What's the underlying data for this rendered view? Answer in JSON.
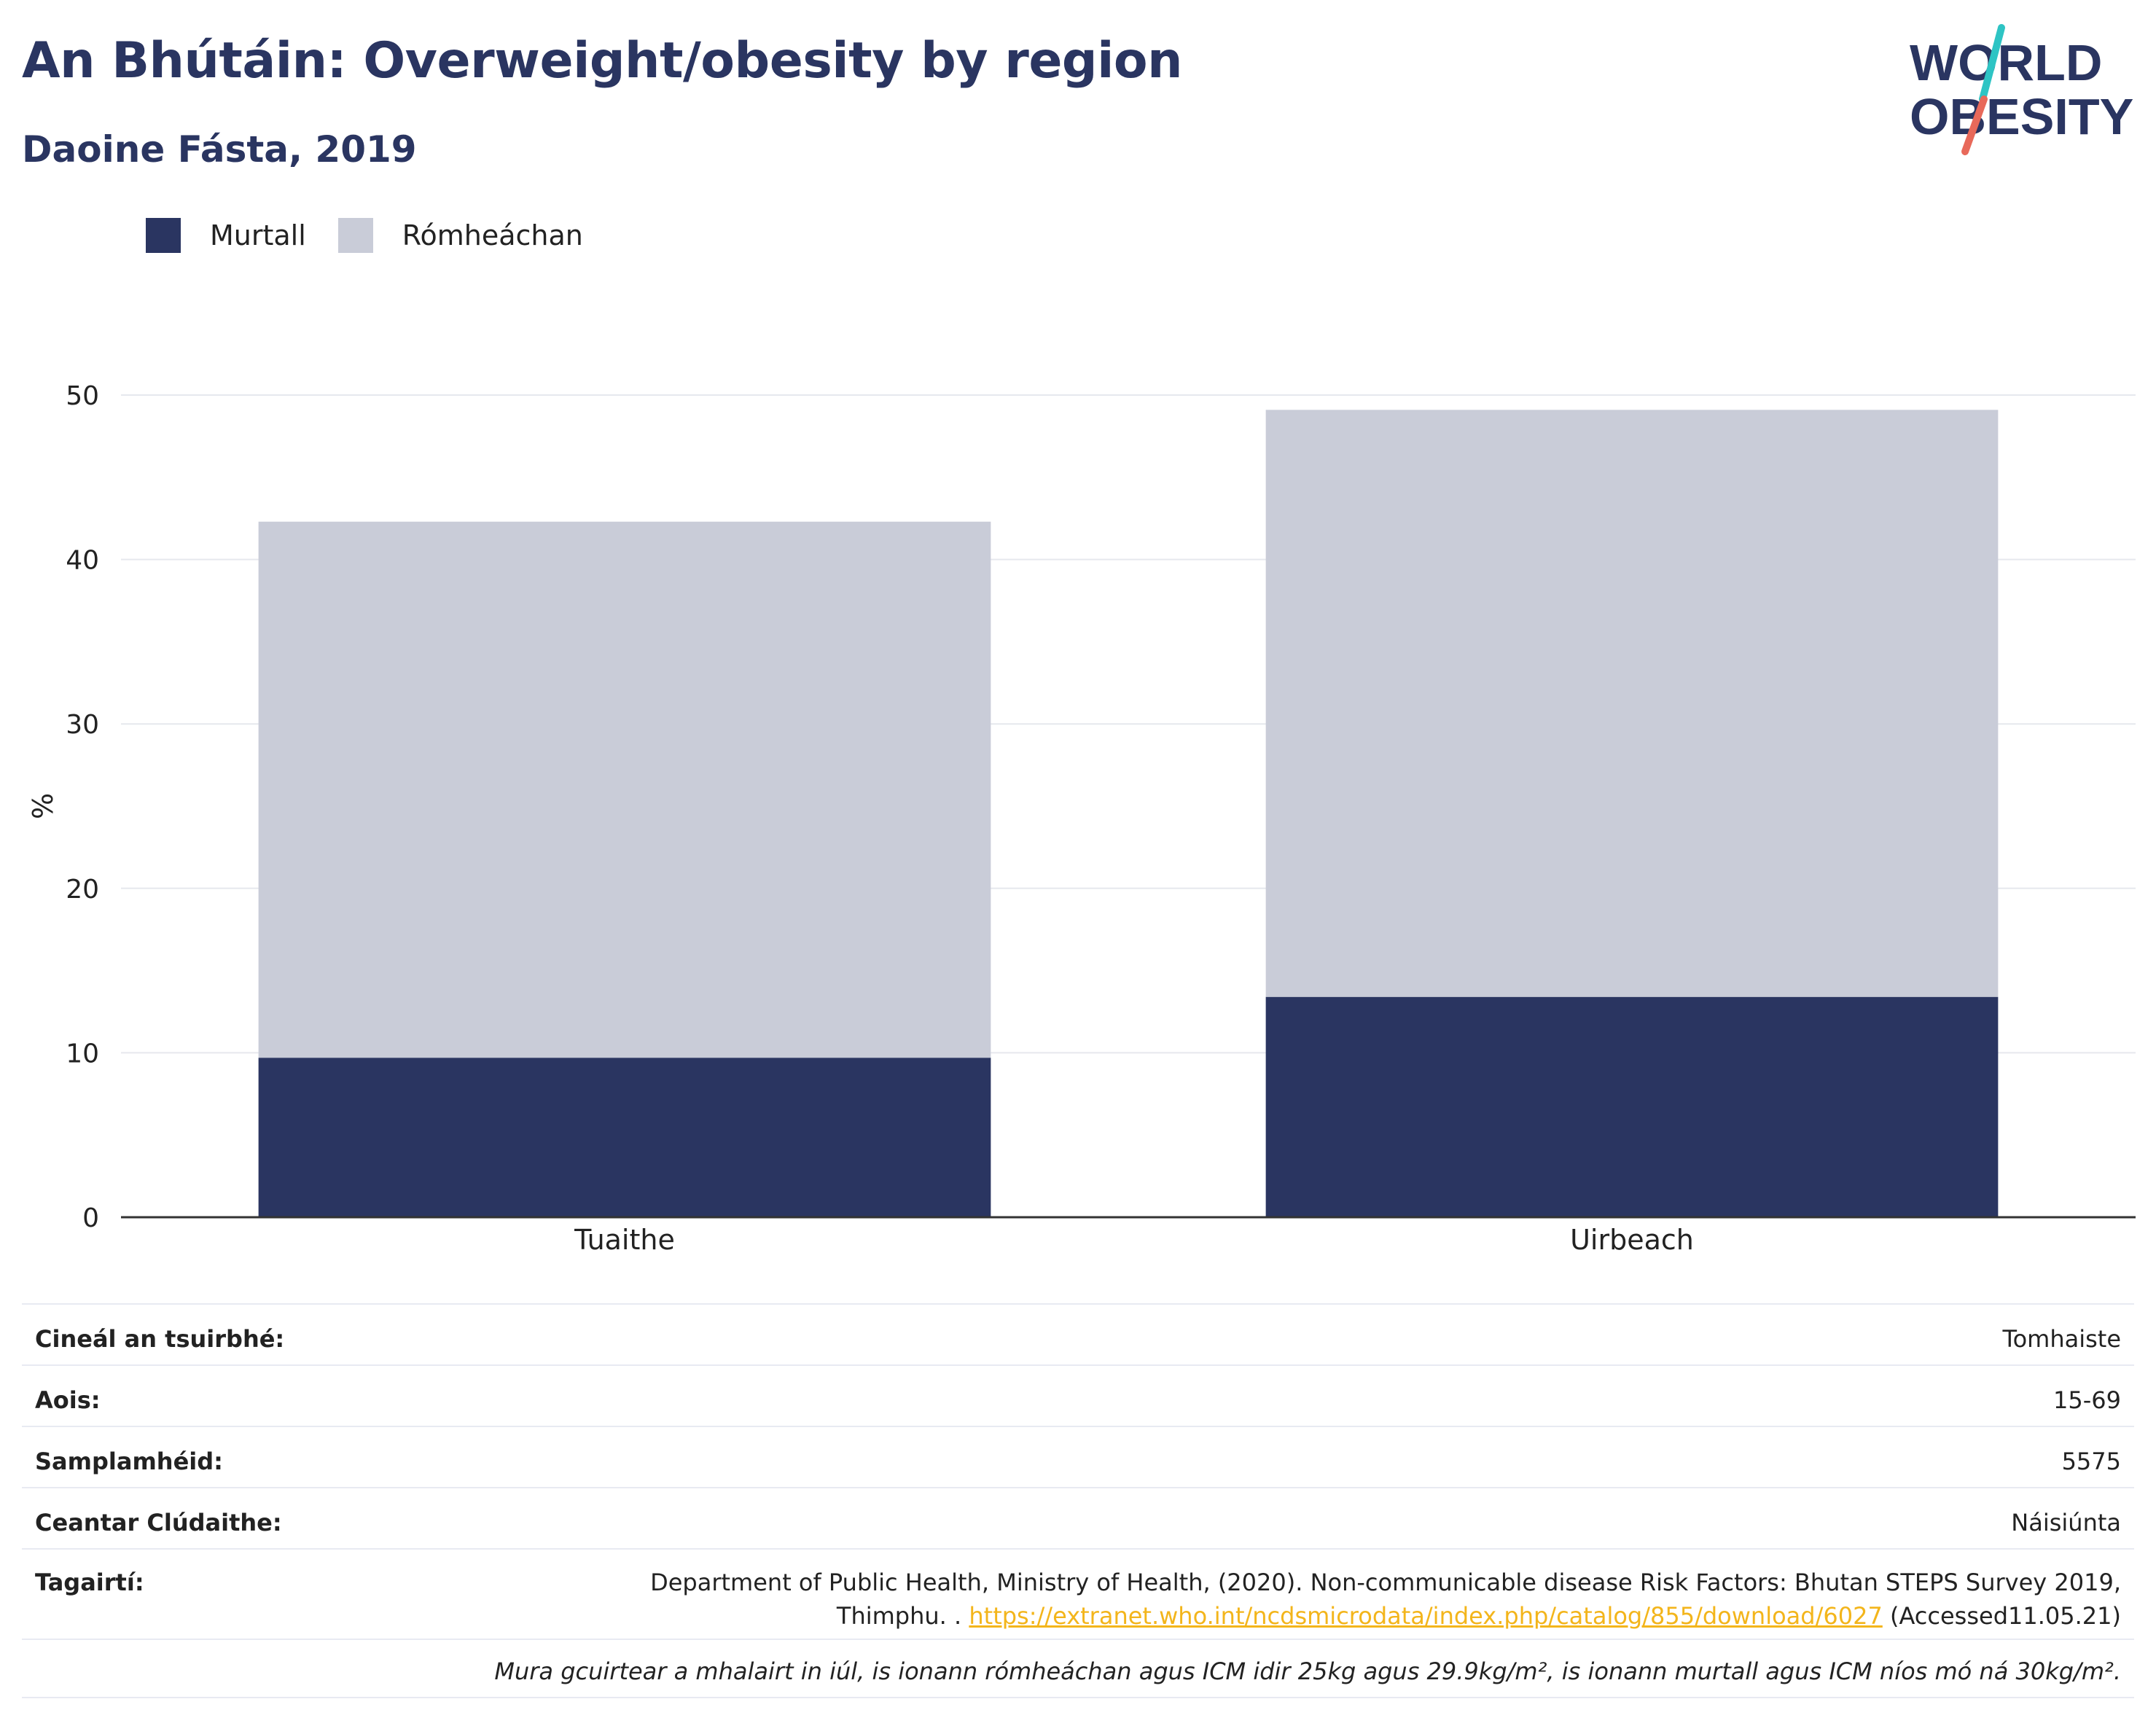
{
  "header": {
    "title": "An Bhútáin: Overweight/obesity by region",
    "subtitle": "Daoine Fásta, 2019"
  },
  "logo": {
    "line1": "WORLD",
    "line2": "OBESITY",
    "colors": {
      "text": "#2a3561",
      "slash_top": "#2ec4c4",
      "slash_bottom": "#e8695a"
    }
  },
  "colors": {
    "obese": "#2a3561",
    "overweight": "#c9ccd8",
    "grid": "#e6e8ee",
    "axis": "#333333"
  },
  "chart_data": {
    "type": "bar",
    "stacked": true,
    "categories": [
      "Tuaithe",
      "Uirbeach"
    ],
    "series": [
      {
        "name": "Murtall",
        "color": "#2a3561",
        "values": [
          9.7,
          13.4
        ]
      },
      {
        "name": "Rómheáchan",
        "color": "#c9ccd8",
        "values": [
          32.6,
          35.7
        ]
      }
    ],
    "ylabel": "%",
    "ylim": [
      0,
      50
    ],
    "yticks": [
      0,
      10,
      20,
      30,
      40,
      50
    ],
    "grid": true,
    "legend_position": "top-left"
  },
  "info": {
    "survey_type_label": "Cineál an tsuirbhé:",
    "survey_type_value": "Tomhaiste",
    "age_label": "Aois:",
    "age_value": "15-69",
    "sample_label": "Samplamhéid:",
    "sample_value": "5575",
    "area_label": "Ceantar Clúdaithe:",
    "area_value": "Náisiúnta",
    "refs_label": "Tagairtí:",
    "refs_line1": "Department of Public Health, Ministry of Health, (2020). Non-communicable disease Risk Factors: Bhutan STEPS Survey 2019,",
    "refs_line2_prefix": "Thimphu. . ",
    "refs_link": "https://extranet.who.int/ncdsmicrodata/index.php/catalog/855/download/6027",
    "refs_line2_suffix": " (Accessed11.05.21)",
    "note": "Mura gcuirtear a mhalairt in iúl, is ionann rómheáchan agus ICM idir 25kg agus 29.9kg/m², is ionann murtall agus ICM níos mó ná 30kg/m²."
  }
}
